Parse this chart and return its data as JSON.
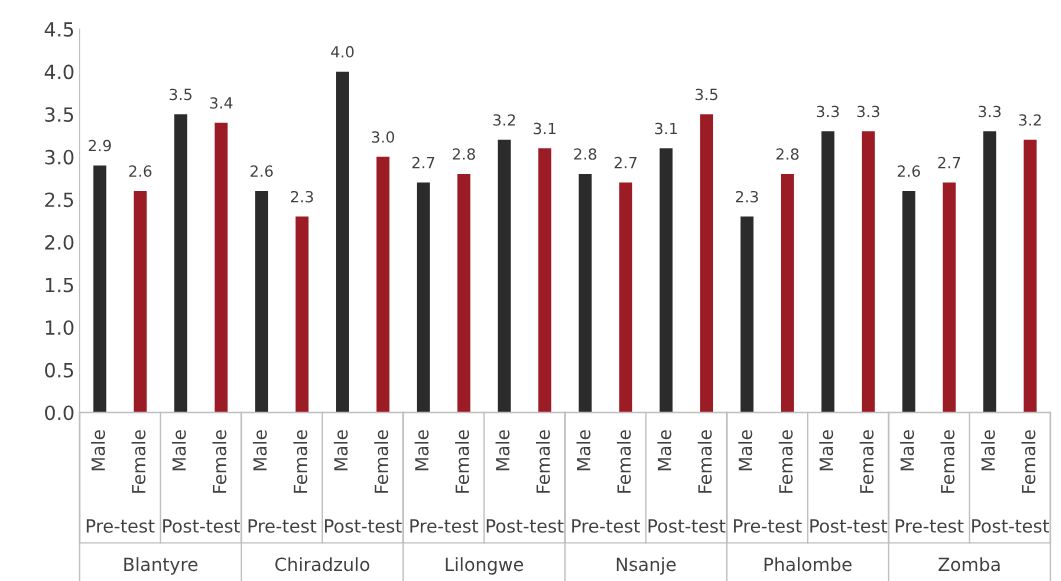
{
  "chart_data": {
    "type": "bar",
    "categories": [
      "Male",
      "Female",
      "Male",
      "Female",
      "Male",
      "Female",
      "Male",
      "Female",
      "Male",
      "Female",
      "Male",
      "Female",
      "Male",
      "Female",
      "Male",
      "Female",
      "Male",
      "Female",
      "Male",
      "Female",
      "Male",
      "Female",
      "Male",
      "Female"
    ],
    "values": [
      2.9,
      2.6,
      3.5,
      3.4,
      2.6,
      2.3,
      4.0,
      3.0,
      2.7,
      2.8,
      3.2,
      3.1,
      2.8,
      2.7,
      3.1,
      3.5,
      2.3,
      2.8,
      3.3,
      3.3,
      2.6,
      2.7,
      3.3,
      3.2
    ],
    "colors": [
      "#2b2b2b",
      "#9b1c24",
      "#2b2b2b",
      "#9b1c24",
      "#2b2b2b",
      "#9b1c24",
      "#2b2b2b",
      "#9b1c24",
      "#2b2b2b",
      "#9b1c24",
      "#2b2b2b",
      "#9b1c24",
      "#2b2b2b",
      "#9b1c24",
      "#2b2b2b",
      "#9b1c24",
      "#2b2b2b",
      "#9b1c24",
      "#2b2b2b",
      "#9b1c24",
      "#2b2b2b",
      "#9b1c24",
      "#2b2b2b",
      "#9b1c24"
    ],
    "annotations": [
      "Pre-test",
      "Post-test",
      "Pre-test",
      "Post-test",
      "Pre-test",
      "Post-test",
      "Pre-test",
      "Post-test",
      "Pre-test",
      "Post-test",
      "Pre-test",
      "Post-test",
      "Blantyre",
      "Chiradzulo",
      "Lilongwe",
      "Nsanje",
      "Phalombe",
      "Zomba"
    ],
    "ylim": [
      0,
      4.5
    ],
    "yticks": [
      {
        "value": 0,
        "label": "0.0"
      },
      {
        "value": 0.5,
        "label": "0.5"
      },
      {
        "value": 1,
        "label": "1.0"
      },
      {
        "value": 1.5,
        "label": "1.5"
      },
      {
        "value": 2,
        "label": "2.0"
      },
      {
        "value": 2.5,
        "label": "2.5"
      },
      {
        "value": 3,
        "label": "3.0"
      },
      {
        "value": 3.5,
        "label": "3.5"
      },
      {
        "value": 4,
        "label": "4.0"
      },
      {
        "value": 4.5,
        "label": "4.5"
      }
    ],
    "value_labels": [
      "2.9",
      "2.6",
      "3.5",
      "3.4",
      "2.6",
      "2.3",
      "4.0",
      "3.0",
      "2.7",
      "2.8",
      "3.2",
      "3.1",
      "2.8",
      "2.7",
      "3.1",
      "3.5",
      "2.3",
      "2.8",
      "3.3",
      "3.3",
      "2.6",
      "2.7",
      "3.3",
      "3.2"
    ],
    "grid": false,
    "legend": false
  }
}
